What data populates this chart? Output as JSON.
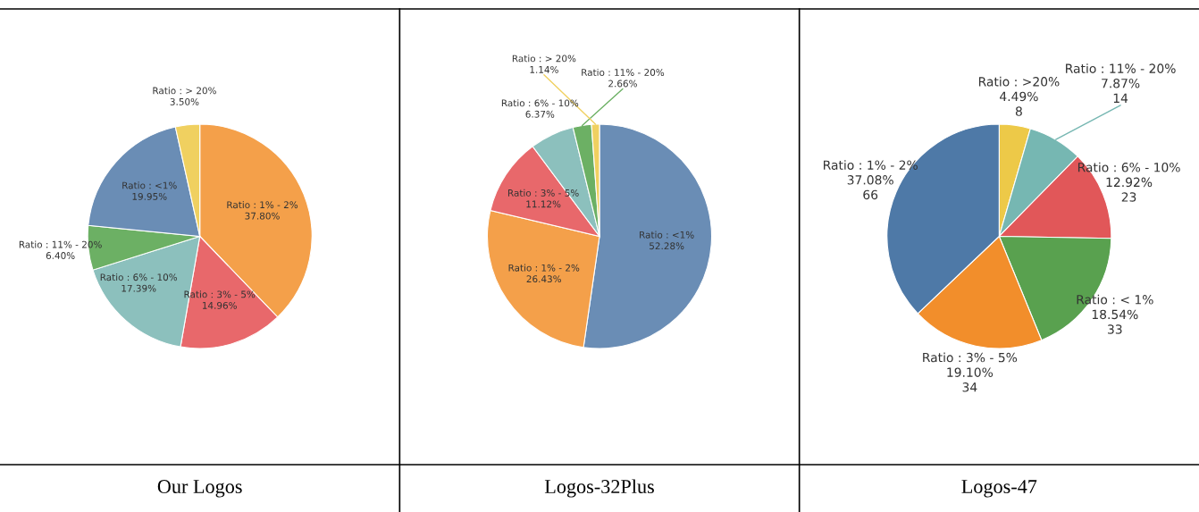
{
  "chart_data": [
    {
      "type": "pie",
      "title": "Our Logos",
      "categories": [
        "Ratio : 1% - 2%",
        "Ratio : 3% - 5%",
        "Ratio : 6% - 10%",
        "Ratio : 11% - 20%",
        "Ratio : <1%",
        "Ratio : > 20%"
      ],
      "values": [
        37.8,
        14.96,
        17.39,
        6.4,
        19.95,
        3.5
      ],
      "value_labels": [
        "37.80%",
        "14.96%",
        "17.39%",
        "6.40%",
        "19.95%",
        "3.50%"
      ],
      "colors": [
        "#f4a04a",
        "#e8686b",
        "#8cc0bd",
        "#6cb064",
        "#6a8db5",
        "#f0d060"
      ]
    },
    {
      "type": "pie",
      "title": "Logos-32Plus",
      "categories": [
        "Ratio : <1%",
        "Ratio : 1% - 2%",
        "Ratio : 3% - 5%",
        "Ratio : 6% - 10%",
        "Ratio : 11% - 20%",
        "Ratio : > 20%"
      ],
      "values": [
        52.28,
        26.43,
        11.12,
        6.37,
        2.66,
        1.14
      ],
      "value_labels": [
        "52.28%",
        "26.43%",
        "11.12%",
        "6.37%",
        "2.66%",
        "1.14%"
      ],
      "colors": [
        "#6a8db5",
        "#f4a04a",
        "#e8686b",
        "#8cc0bd",
        "#6cb064",
        "#f0d060"
      ]
    },
    {
      "type": "pie",
      "title": "Logos-47",
      "categories": [
        "Ratio : >20%",
        "Ratio : 11% - 20%",
        "Ratio : 6% - 10%",
        "Ratio : < 1%",
        "Ratio : 3% - 5%",
        "Ratio : 1% - 2%"
      ],
      "values": [
        8,
        14,
        23,
        33,
        34,
        66
      ],
      "value_labels": [
        "4.49%\n8",
        "7.87%\n14",
        "12.92%\n23",
        "18.54%\n33",
        "19.10%\n34",
        "37.08%\n66"
      ],
      "colors": [
        "#edc948",
        "#76b7b2",
        "#e15759",
        "#59a14f",
        "#f28e2b",
        "#4e79a7"
      ]
    }
  ]
}
